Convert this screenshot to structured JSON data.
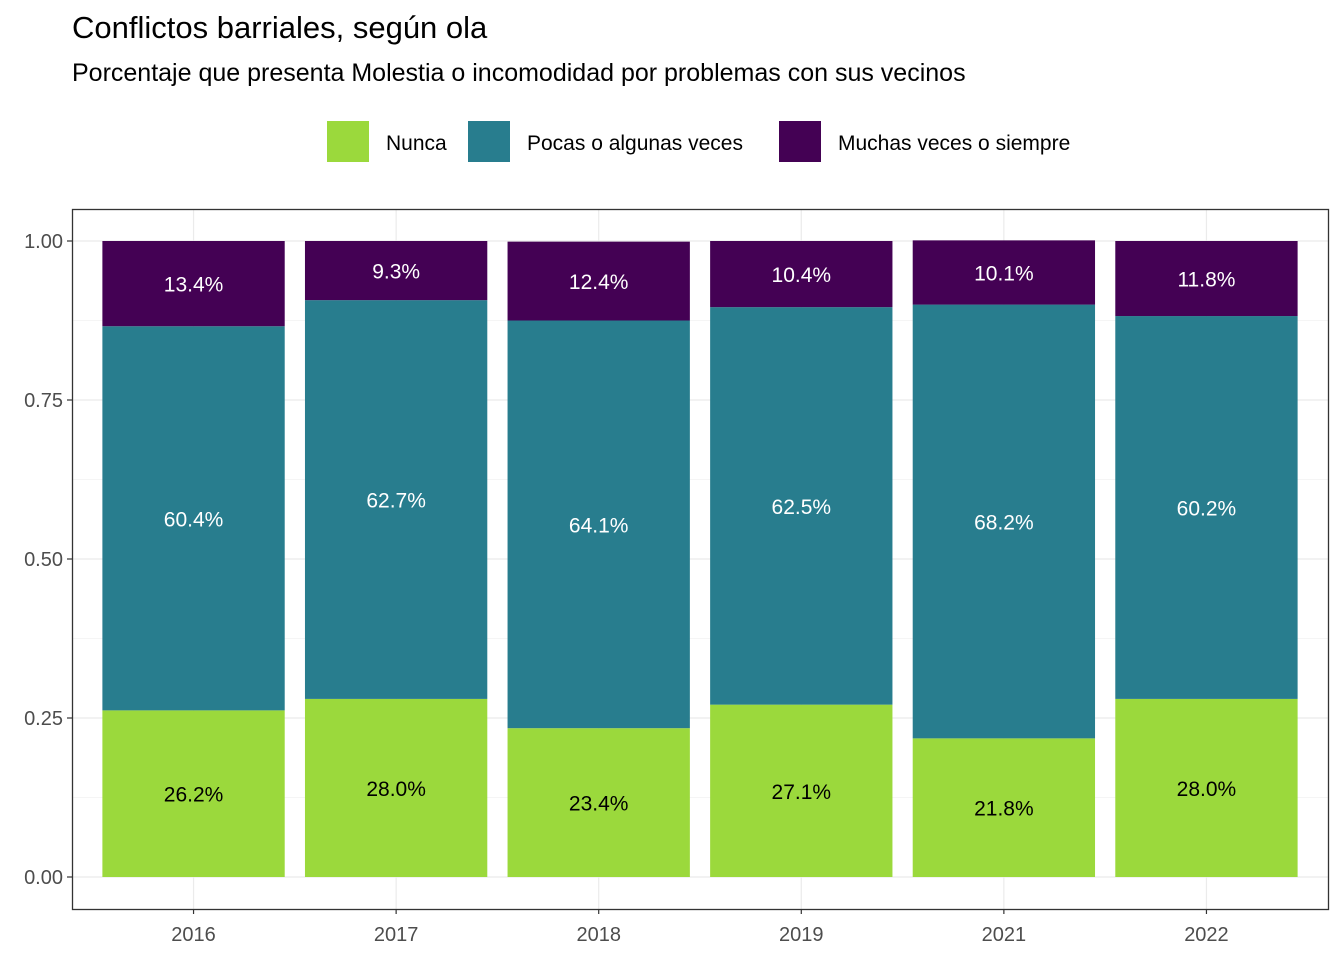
{
  "title": "Conflictos barriales, según ola",
  "subtitle": "Porcentaje que presenta Molestia o incomodidad por problemas con sus vecinos",
  "chart_data": {
    "type": "bar",
    "stacked": true,
    "title": "Conflictos barriales, según ola",
    "subtitle": "Porcentaje que presenta Molestia o incomodidad por problemas con sus vecinos",
    "xlabel": "",
    "ylabel": "",
    "categories": [
      "2016",
      "2017",
      "2018",
      "2019",
      "2021",
      "2022"
    ],
    "ylim": [
      0,
      1
    ],
    "yticks": [
      "0.00",
      "0.25",
      "0.50",
      "0.75",
      "1.00"
    ],
    "grid": true,
    "legend_position": "top",
    "series": [
      {
        "name": "Nunca",
        "color": "#9BD93C",
        "label_color": "#000000",
        "values": [
          0.262,
          0.28,
          0.234,
          0.271,
          0.218,
          0.28
        ],
        "labels": [
          "26.2%",
          "28.0%",
          "23.4%",
          "27.1%",
          "21.8%",
          "28.0%"
        ]
      },
      {
        "name": "Pocas o algunas veces",
        "color": "#287D8E",
        "label_color": "#ffffff",
        "values": [
          0.604,
          0.627,
          0.641,
          0.625,
          0.682,
          0.602
        ],
        "labels": [
          "60.4%",
          "62.7%",
          "64.1%",
          "62.5%",
          "68.2%",
          "60.2%"
        ]
      },
      {
        "name": "Muchas veces o siempre",
        "color": "#440154",
        "label_color": "#ffffff",
        "values": [
          0.134,
          0.093,
          0.124,
          0.104,
          0.101,
          0.118
        ],
        "labels": [
          "13.4%",
          "9.3%",
          "12.4%",
          "10.4%",
          "10.1%",
          "11.8%"
        ]
      }
    ]
  }
}
